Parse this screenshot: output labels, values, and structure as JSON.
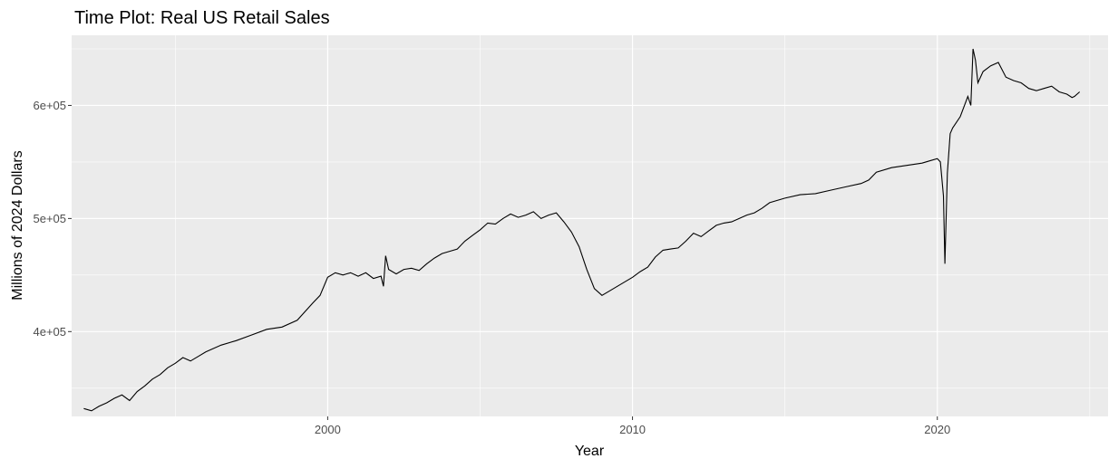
{
  "chart_data": {
    "type": "line",
    "title": "Time Plot: Real US Retail Sales",
    "xlabel": "Year",
    "ylabel": "Millions of 2024 Dollars",
    "xlim": [
      1991.6,
      2025.6
    ],
    "ylim": [
      325000,
      662000
    ],
    "x_ticks": [
      2000,
      2010,
      2020
    ],
    "x_tick_labels": [
      "2000",
      "2010",
      "2020"
    ],
    "y_ticks": [
      400000,
      500000,
      600000
    ],
    "y_tick_labels": [
      "4e+05",
      "5e+05",
      "6e+05"
    ],
    "grid": true,
    "legend": "none",
    "colors": {
      "panel": "#ebebeb",
      "grid": "#ffffff",
      "line": "#000000",
      "tick": "#4d4d4d"
    },
    "series": [
      {
        "x": [
          1992.0,
          1992.25,
          1992.5,
          1992.75,
          1993.0,
          1993.25,
          1993.5,
          1993.75,
          1994.0,
          1994.25,
          1994.5,
          1994.75,
          1995.0,
          1995.25,
          1995.5,
          1995.75,
          1996.0,
          1996.5,
          1997.0,
          1997.5,
          1998.0,
          1998.5,
          1999.0,
          1999.5,
          1999.75,
          2000.0,
          2000.25,
          2000.5,
          2000.75,
          2001.0,
          2001.25,
          2001.5,
          2001.75,
          2001.83,
          2001.9,
          2002.0,
          2002.25,
          2002.5,
          2002.75,
          2003.0,
          2003.25,
          2003.5,
          2003.75,
          2004.0,
          2004.25,
          2004.5,
          2004.75,
          2005.0,
          2005.25,
          2005.5,
          2005.75,
          2006.0,
          2006.25,
          2006.5,
          2006.75,
          2007.0,
          2007.25,
          2007.5,
          2007.75,
          2008.0,
          2008.25,
          2008.5,
          2008.75,
          2009.0,
          2009.25,
          2009.5,
          2009.75,
          2010.0,
          2010.25,
          2010.5,
          2010.75,
          2011.0,
          2011.25,
          2011.5,
          2011.75,
          2012.0,
          2012.25,
          2012.5,
          2012.75,
          2013.0,
          2013.25,
          2013.5,
          2013.75,
          2014.0,
          2014.25,
          2014.5,
          2014.75,
          2015.0,
          2015.5,
          2016.0,
          2016.5,
          2017.0,
          2017.5,
          2017.75,
          2018.0,
          2018.5,
          2019.0,
          2019.5,
          2019.75,
          2020.0,
          2020.1,
          2020.2,
          2020.25,
          2020.33,
          2020.42,
          2020.5,
          2020.75,
          2021.0,
          2021.1,
          2021.17,
          2021.25,
          2021.33,
          2021.5,
          2021.75,
          2022.0,
          2022.25,
          2022.5,
          2022.75,
          2023.0,
          2023.25,
          2023.5,
          2023.75,
          2024.0,
          2024.25,
          2024.42,
          2024.5,
          2024.67
        ],
        "values": [
          332000,
          330000,
          334000,
          337000,
          341000,
          344000,
          339000,
          347000,
          352000,
          358000,
          362000,
          368000,
          372000,
          377000,
          374000,
          378000,
          382000,
          388000,
          392000,
          397000,
          402000,
          404000,
          410000,
          425000,
          432000,
          448000,
          452000,
          450000,
          452000,
          449000,
          452000,
          447000,
          449000,
          440000,
          467000,
          455000,
          451000,
          455000,
          456000,
          454000,
          460000,
          465000,
          469000,
          471000,
          473000,
          480000,
          485000,
          490000,
          496000,
          495000,
          500000,
          504000,
          501000,
          503000,
          506000,
          500000,
          503000,
          505000,
          497000,
          488000,
          475000,
          455000,
          438000,
          432000,
          436000,
          440000,
          444000,
          448000,
          453000,
          457000,
          466000,
          472000,
          473000,
          474000,
          480000,
          487000,
          484000,
          489000,
          494000,
          496000,
          497000,
          500000,
          503000,
          505000,
          509000,
          514000,
          516000,
          518000,
          521000,
          522000,
          525000,
          528000,
          531000,
          534000,
          541000,
          545000,
          547000,
          549000,
          551000,
          553000,
          550000,
          520000,
          460000,
          540000,
          575000,
          580000,
          590000,
          608000,
          600000,
          650000,
          640000,
          620000,
          630000,
          635000,
          638000,
          625000,
          622000,
          620000,
          615000,
          613000,
          615000,
          617000,
          612000,
          610000,
          607000,
          608000,
          612000
        ]
      }
    ]
  }
}
